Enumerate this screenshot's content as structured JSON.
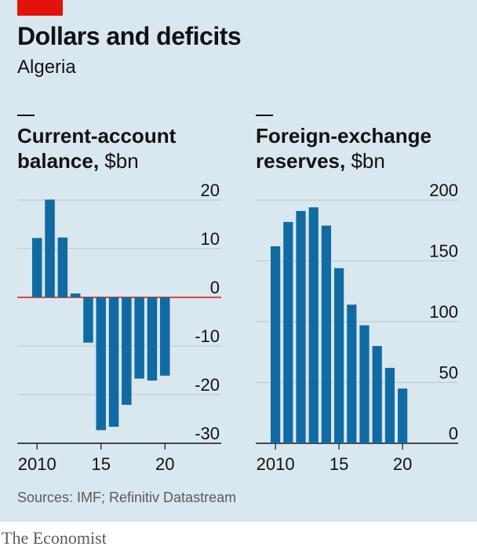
{
  "header": {
    "title": "Dollars and deficits",
    "subtitle": "Algeria"
  },
  "source": "Sources: IMF; Refinitiv Datastream",
  "brand": "The Economist",
  "colors": {
    "bar": "#106ba2",
    "zero_line": "#e3120b",
    "background": "#d9e7ef",
    "accent": "#e3120b"
  },
  "chart_data": [
    {
      "type": "bar",
      "title_bold": "Current-account balance,",
      "title_unit": "$bn",
      "title_line1": "Current-account",
      "title_line2_bold": "balance,",
      "title_line2_unit": "$bn",
      "x": [
        2010,
        2011,
        2012,
        2013,
        2014,
        2015,
        2016,
        2017,
        2018,
        2019,
        2020
      ],
      "values": [
        12.2,
        20.1,
        12.3,
        0.8,
        -9.3,
        -27.3,
        -26.6,
        -22.1,
        -16.7,
        -17.1,
        -16.1
      ],
      "ylim": [
        -30,
        20
      ],
      "yticks": [
        20,
        10,
        0,
        -10,
        -20,
        -30
      ],
      "ytick_labels": [
        "20",
        "10",
        "0",
        "-10",
        "-20",
        "-30"
      ],
      "xticks": [
        2010,
        2015,
        2020
      ],
      "xtick_labels": [
        "2010",
        "15",
        "20"
      ],
      "grid": true
    },
    {
      "type": "bar",
      "title_line1": "Foreign-exchange",
      "title_line2_bold": "reserves,",
      "title_line2_unit": "$bn",
      "x": [
        2010,
        2011,
        2012,
        2013,
        2014,
        2015,
        2016,
        2017,
        2018,
        2019,
        2020
      ],
      "values": [
        162,
        182,
        191,
        194,
        179,
        144,
        114,
        97,
        80,
        62,
        45
      ],
      "ylim": [
        0,
        200
      ],
      "yticks": [
        200,
        150,
        100,
        50,
        0
      ],
      "ytick_labels": [
        "200",
        "150",
        "100",
        "50",
        "0"
      ],
      "xticks": [
        2010,
        2015,
        2020
      ],
      "xtick_labels": [
        "2010",
        "15",
        "20"
      ],
      "grid": true
    }
  ]
}
